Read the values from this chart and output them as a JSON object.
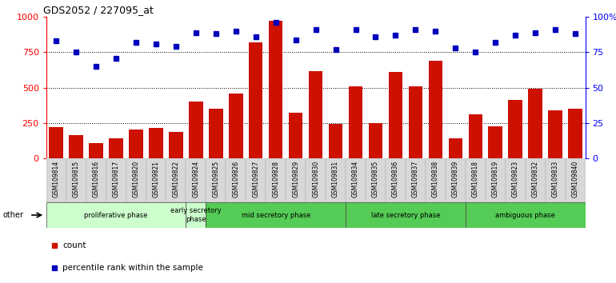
{
  "title": "GDS2052 / 227095_at",
  "samples": [
    "GSM109814",
    "GSM109815",
    "GSM109816",
    "GSM109817",
    "GSM109820",
    "GSM109821",
    "GSM109822",
    "GSM109824",
    "GSM109825",
    "GSM109826",
    "GSM109827",
    "GSM109828",
    "GSM109829",
    "GSM109830",
    "GSM109831",
    "GSM109834",
    "GSM109835",
    "GSM109836",
    "GSM109837",
    "GSM109838",
    "GSM109839",
    "GSM109818",
    "GSM109819",
    "GSM109823",
    "GSM109832",
    "GSM109833",
    "GSM109840"
  ],
  "counts": [
    220,
    165,
    110,
    140,
    205,
    215,
    185,
    405,
    350,
    460,
    820,
    975,
    325,
    615,
    245,
    510,
    250,
    610,
    510,
    690,
    140,
    310,
    230,
    415,
    495,
    340,
    350
  ],
  "percentiles": [
    83,
    75,
    65,
    71,
    82,
    81,
    79,
    89,
    88,
    90,
    86,
    96,
    84,
    91,
    77,
    91,
    86,
    87,
    91,
    90,
    78,
    75,
    82,
    87,
    89,
    91,
    88
  ],
  "phases": [
    {
      "name": "proliferative phase",
      "start": 0,
      "end": 7,
      "color": "#ccffcc"
    },
    {
      "name": "early secretory\nphase",
      "start": 7,
      "end": 8,
      "color": "#ccffcc"
    },
    {
      "name": "mid secretory phase",
      "start": 8,
      "end": 15,
      "color": "#55cc55"
    },
    {
      "name": "late secretory phase",
      "start": 15,
      "end": 21,
      "color": "#55cc55"
    },
    {
      "name": "ambiguous phase",
      "start": 21,
      "end": 27,
      "color": "#55cc55"
    }
  ],
  "bar_color": "#cc1100",
  "dot_color": "#0000bb",
  "ylim_left": [
    0,
    1000
  ],
  "ylim_right": [
    0,
    100
  ],
  "yticks_left": [
    0,
    250,
    500,
    750,
    1000
  ],
  "ytick_labels_left": [
    "0",
    "250",
    "500",
    "750",
    "1000"
  ],
  "ytick_labels_right": [
    "0",
    "25",
    "50",
    "75",
    "100%"
  ],
  "grid_values": [
    250,
    500,
    750
  ],
  "bg_color": "#ffffff",
  "tick_bg_color": "#d8d8d8"
}
